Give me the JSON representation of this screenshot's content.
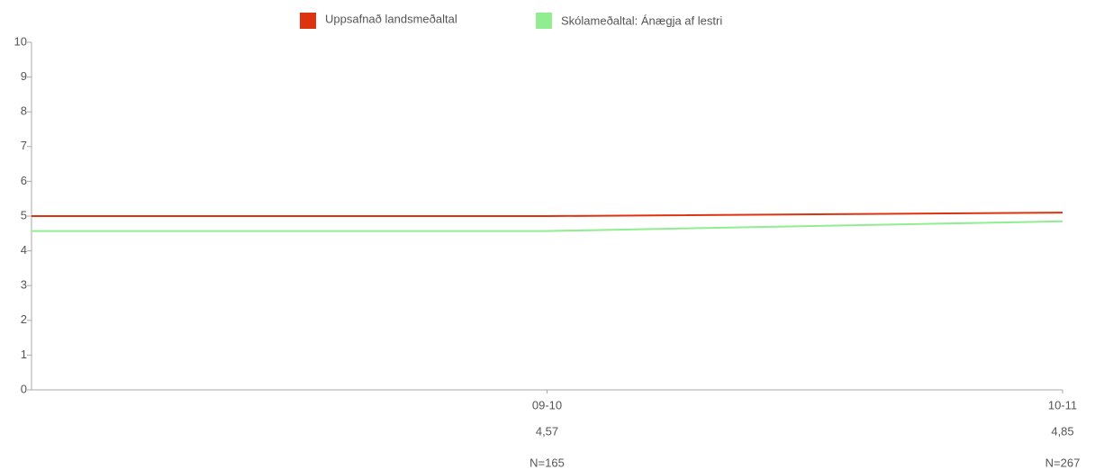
{
  "chart_data": {
    "type": "line",
    "categories": [
      null,
      "09-10",
      "10-11"
    ],
    "series": [
      {
        "name": "Uppsafnað landsmeðaltal",
        "color": "#dd3311",
        "values": [
          5.0,
          5.0,
          5.1
        ]
      },
      {
        "name": "Skólameðaltal: Ánægja af lestri",
        "color": "#90ee90",
        "values": [
          4.57,
          4.57,
          4.85
        ],
        "value_labels": [
          null,
          "4,57",
          "4,85"
        ]
      }
    ],
    "n_labels": [
      null,
      "N=165",
      "N=267"
    ],
    "ylim": [
      0,
      10
    ],
    "yticks": [
      0,
      1,
      2,
      3,
      4,
      5,
      6,
      7,
      8,
      9,
      10
    ],
    "grid": false
  }
}
